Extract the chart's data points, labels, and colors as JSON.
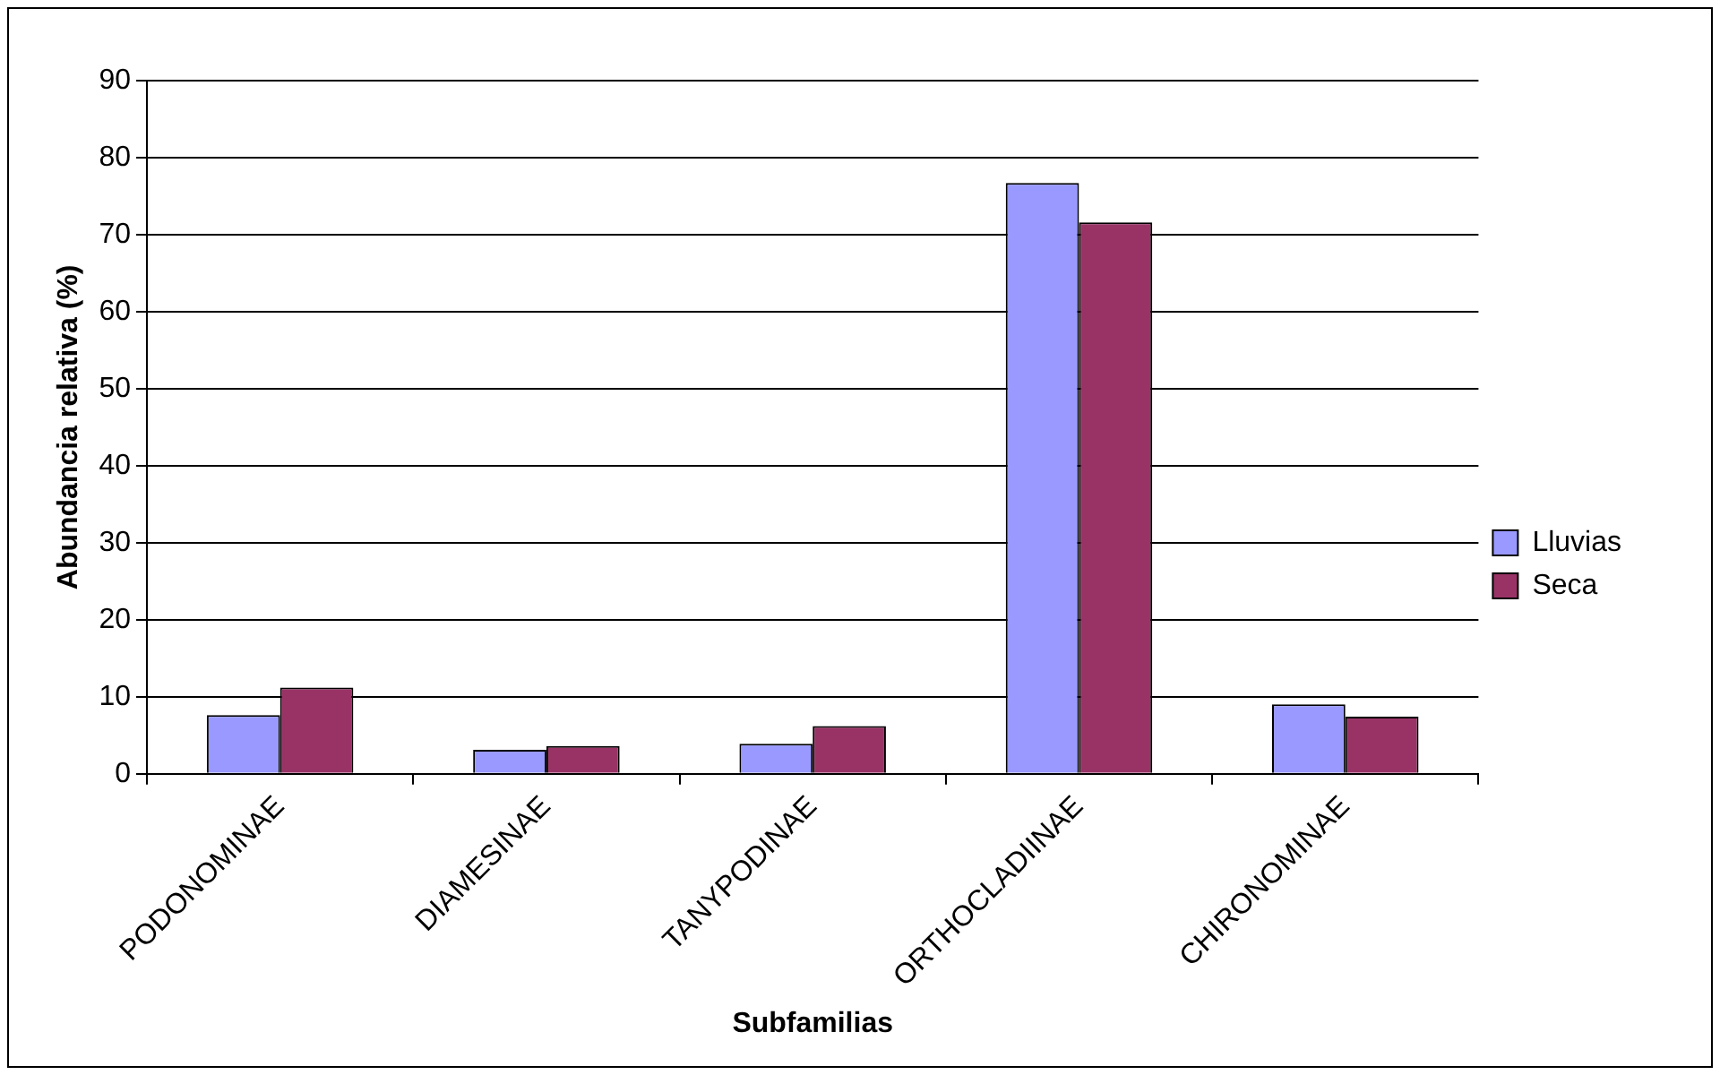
{
  "chart_data": {
    "type": "bar",
    "xlabel": "Subfamilias",
    "ylabel": "Abundancia relativa (%)",
    "categories": [
      "PODONOMINAE",
      "DIAMESINAE",
      "TANYPODINAE",
      "ORTHOCLADIINAE",
      "CHIRONOMINAE"
    ],
    "series": [
      {
        "name": "Lluvias",
        "color": "#9999ff",
        "values": [
          7.6,
          3.1,
          3.9,
          76.7,
          9.0
        ]
      },
      {
        "name": "Seca",
        "color": "#993366",
        "values": [
          11.2,
          3.6,
          6.2,
          71.6,
          7.4
        ]
      }
    ],
    "ylim": [
      0,
      90
    ],
    "yticks": [
      0,
      10,
      20,
      30,
      40,
      50,
      60,
      70,
      80,
      90
    ],
    "grid": "y",
    "legend": "right"
  }
}
